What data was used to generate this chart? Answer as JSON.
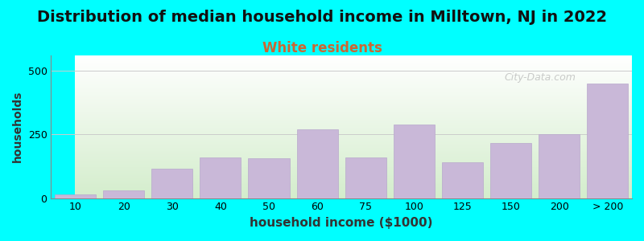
{
  "title": "Distribution of median household income in Milltown, NJ in 2022",
  "subtitle": "White residents",
  "xlabel": "household income ($1000)",
  "ylabel": "households",
  "bar_labels": [
    "10",
    "20",
    "30",
    "40",
    "50",
    "60",
    "75",
    "100",
    "125",
    "150",
    "200",
    "> 200"
  ],
  "bar_values": [
    15,
    30,
    115,
    160,
    155,
    270,
    160,
    290,
    140,
    215,
    250,
    450
  ],
  "bar_color": "#c9b8d8",
  "bar_edge_color": "#b8a8cc",
  "background_top": "#ffffff",
  "background_bottom": "#d4edcc",
  "fig_background": "#00ffff",
  "title_fontsize": 14,
  "subtitle_fontsize": 12,
  "subtitle_color": "#cc6633",
  "ylabel_fontsize": 10,
  "xlabel_fontsize": 11,
  "yticks": [
    0,
    250,
    500
  ],
  "ylim": [
    0,
    560
  ],
  "watermark_text": "City-Data.com"
}
